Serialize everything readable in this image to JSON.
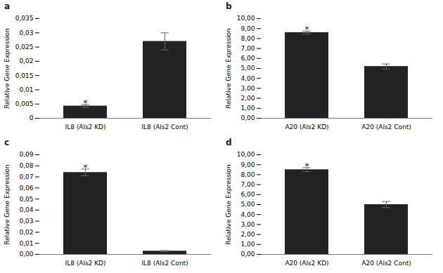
{
  "chart_data": [
    {
      "type": "bar",
      "title": "a",
      "ylabel": "Relative Gene Expression",
      "categories": [
        "IL8 (Als2 KD)",
        "IL8 (Als2 Cont)"
      ],
      "values": [
        0.0043,
        0.027
      ],
      "errors": [
        0.0005,
        0.003
      ],
      "color": "#222222",
      "grid": false,
      "annotations": [
        {
          "category": "IL8 (Als2 KD)",
          "text": "*"
        }
      ],
      "ylim": [
        0,
        0.035
      ],
      "yticks": [
        0,
        {
          "value": 0.005,
          "label": "0,005"
        },
        {
          "value": 0.01,
          "label": "0,01"
        },
        {
          "value": 0.015,
          "label": "0,015"
        },
        {
          "value": 0.02,
          "label": "0,02"
        },
        {
          "value": 0.025,
          "label": "0,025"
        },
        {
          "value": 0.03,
          "label": "0,03"
        },
        {
          "value": 0.035,
          "label": "0,035"
        }
      ]
    },
    {
      "type": "bar",
      "title": "b",
      "ylabel": "Relative Gene Expression",
      "categories": [
        "A20 (Als2 KD)",
        "A20 (Als2 Cont)"
      ],
      "values": [
        8.6,
        5.2
      ],
      "errors": [
        0.15,
        0.25
      ],
      "color": "#222222",
      "grid": false,
      "annotations": [
        {
          "category": "A20 (Als2 KD)",
          "text": "*"
        }
      ],
      "ylim": [
        0,
        10
      ],
      "yticks": [
        {
          "value": 0,
          "label": "0,00"
        },
        {
          "value": 1,
          "label": "1,00"
        },
        {
          "value": 2,
          "label": "2,00"
        },
        {
          "value": 3,
          "label": "3,00"
        },
        {
          "value": 4,
          "label": "4,00"
        },
        {
          "value": 5,
          "label": "5,00"
        },
        {
          "value": 6,
          "label": "6,00"
        },
        {
          "value": 7,
          "label": "7,00"
        },
        {
          "value": 8,
          "label": "8,00"
        },
        {
          "value": 9,
          "label": "9,00"
        },
        {
          "value": 10,
          "label": "10,00"
        }
      ]
    },
    {
      "type": "bar",
      "title": "c",
      "ylabel": "Relative Gene Expression",
      "categories": [
        "IL8 (Als2 KD)",
        "IL8 (Als2 Cont)"
      ],
      "values": [
        0.074,
        0.003
      ],
      "errors": [
        0.003,
        0.0005
      ],
      "color": "#222222",
      "grid": false,
      "annotations": [
        {
          "category": "IL8 (Als2 KD)",
          "text": "*"
        }
      ],
      "ylim": [
        0,
        0.09
      ],
      "yticks": [
        {
          "value": 0,
          "label": "0,00"
        },
        {
          "value": 0.01,
          "label": "0,01"
        },
        {
          "value": 0.02,
          "label": "0,02"
        },
        {
          "value": 0.03,
          "label": "0,03"
        },
        {
          "value": 0.04,
          "label": "0,04"
        },
        {
          "value": 0.05,
          "label": "0,05"
        },
        {
          "value": 0.06,
          "label": "0,06"
        },
        {
          "value": 0.07,
          "label": "0,07"
        },
        {
          "value": 0.08,
          "label": "0,08"
        },
        {
          "value": 0.09,
          "label": "0,09"
        }
      ]
    },
    {
      "type": "bar",
      "title": "d",
      "ylabel": "Relative Gene Expression",
      "categories": [
        "A20 (Als2 KD)",
        "A20 (Als2 Cont)"
      ],
      "values": [
        8.5,
        5.0
      ],
      "errors": [
        0.2,
        0.3
      ],
      "color": "#222222",
      "grid": false,
      "annotations": [
        {
          "category": "A20 (Als2 KD)",
          "text": "*"
        }
      ],
      "ylim": [
        0,
        10
      ],
      "yticks": [
        {
          "value": 0,
          "label": "0,00"
        },
        {
          "value": 1,
          "label": "1,00"
        },
        {
          "value": 2,
          "label": "2,00"
        },
        {
          "value": 3,
          "label": "3,00"
        },
        {
          "value": 4,
          "label": "4,00"
        },
        {
          "value": 5,
          "label": "5,00"
        },
        {
          "value": 6,
          "label": "6,00"
        },
        {
          "value": 7,
          "label": "7,00"
        },
        {
          "value": 8,
          "label": "8,00"
        },
        {
          "value": 9,
          "label": "9,00"
        },
        {
          "value": 10,
          "label": "10,00"
        }
      ]
    }
  ]
}
